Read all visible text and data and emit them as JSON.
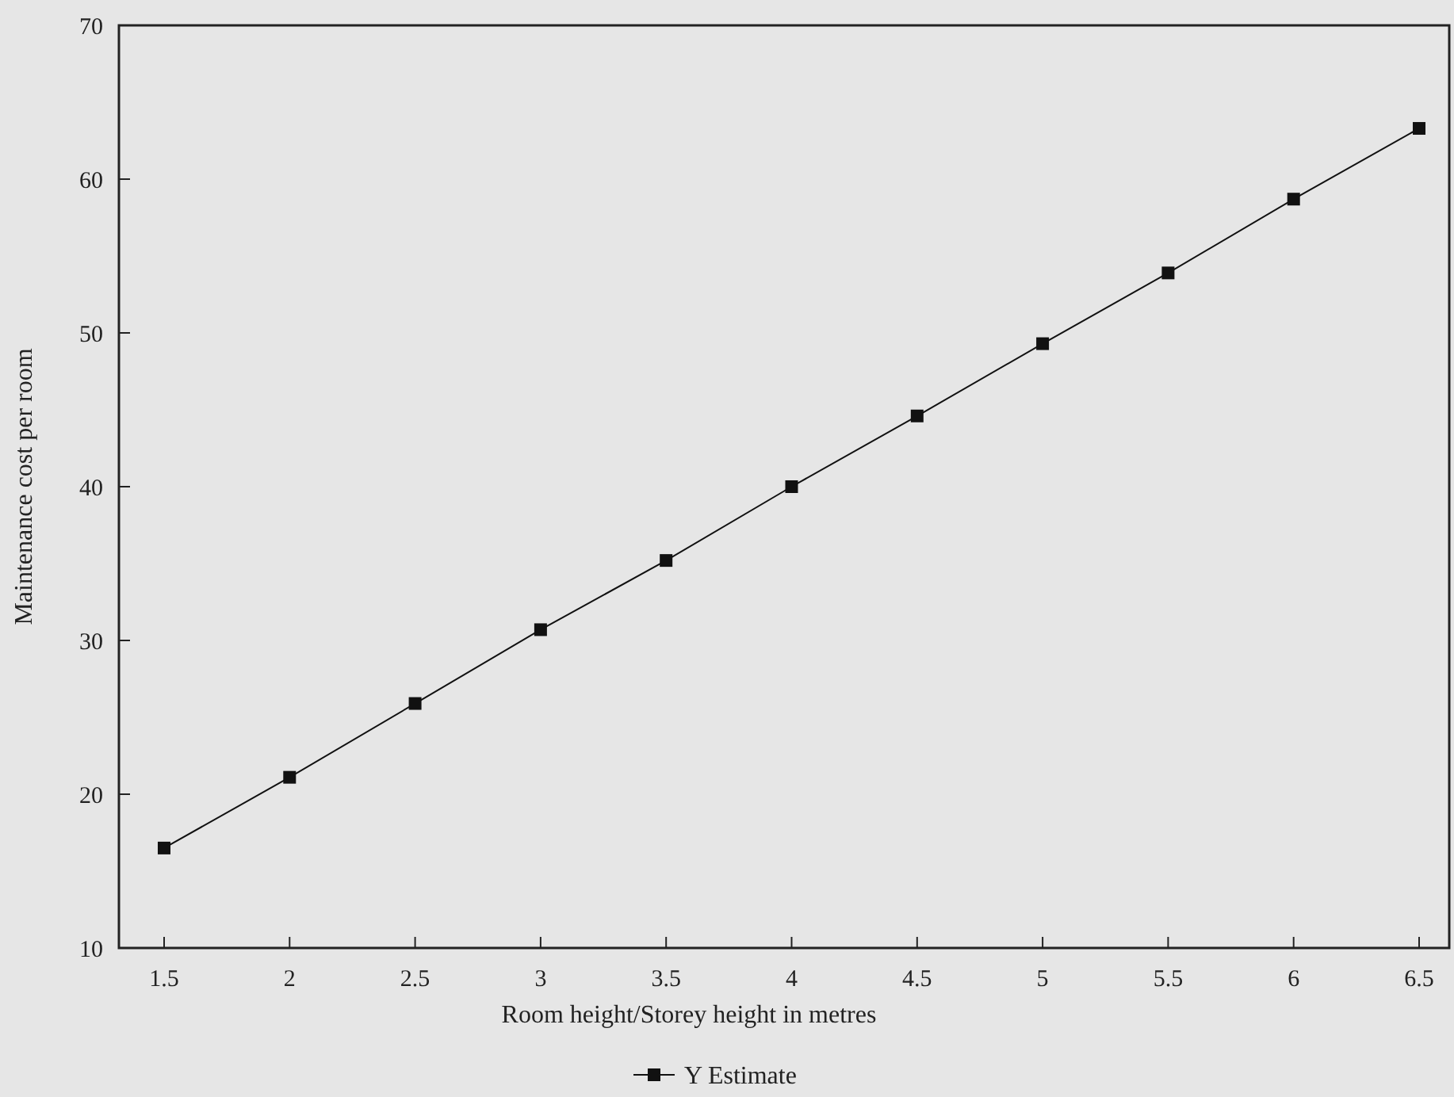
{
  "chart_data": {
    "type": "line",
    "xlabel": "Room height/Storey height in metres",
    "ylabel": "Maintenance cost per room",
    "x": [
      1.5,
      2,
      2.5,
      3,
      3.5,
      4,
      4.5,
      5,
      5.5,
      6,
      6.5
    ],
    "series": [
      {
        "name": "Y Estimate",
        "color": "#111111",
        "values": [
          16.5,
          21.1,
          25.9,
          30.7,
          35.2,
          40,
          44.6,
          49.3,
          53.9,
          58.7,
          63.3
        ]
      }
    ],
    "xlim": [
      1.32,
      6.62
    ],
    "ylim": [
      10,
      70
    ],
    "xticks": [
      1.5,
      2,
      2.5,
      3,
      3.5,
      4,
      4.5,
      5,
      5.5,
      6,
      6.5
    ],
    "yticks": [
      10,
      20,
      30,
      40,
      50,
      60,
      70
    ],
    "grid": false,
    "legend": "bottom",
    "marker": "square",
    "line_style": "solid"
  }
}
